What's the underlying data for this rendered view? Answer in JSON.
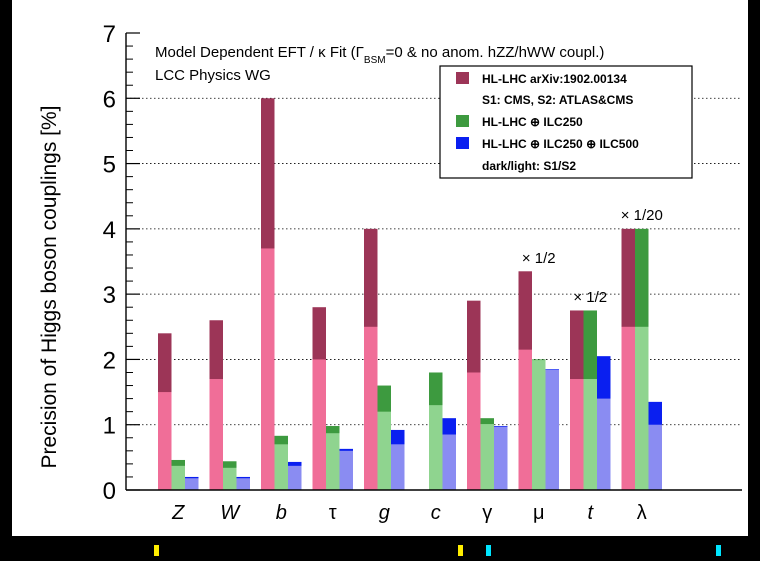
{
  "colors": {
    "background": "#000000",
    "panel": "#ffffff",
    "hl_dark": "#9c3557",
    "hl_light": "#f06e98",
    "ilc250_dark": "#3d9a3f",
    "ilc250_light": "#8fd48f",
    "ilc500_dark": "#0a1ff0",
    "ilc500_light": "#8a8cf2",
    "marker_yellow": "#ffee00",
    "marker_cyan": "#00e5ff"
  },
  "chart_data": {
    "type": "bar",
    "ylabel": "Precision of Higgs boson couplings [%]",
    "ylim": [
      0,
      7
    ],
    "yticks": [
      "0",
      "1",
      "2",
      "3",
      "4",
      "5",
      "6",
      "7"
    ],
    "grid": "horizontal dotted at 1–6",
    "categories": [
      "Z",
      "W",
      "b",
      "τ",
      "g",
      "c",
      "γ",
      "μ",
      "t",
      "λ"
    ],
    "title_lines": [
      "Model Dependent EFT / κ Fit (Γ",
      "BSM",
      "=0 & no anom. hZZ/hWW coupl.)",
      "LCC Physics WG"
    ],
    "legend_entries": [
      "HL-LHC arXiv:1902.00134",
      "S1: CMS, S2: ATLAS&CMS",
      "HL-LHC ⊕ ILC250",
      "HL-LHC ⊕ ILC250 ⊕ ILC500",
      "dark/light: S1/S2"
    ],
    "annotations": [
      {
        "text": "× 1/2",
        "category": "μ"
      },
      {
        "text": "× 1/2",
        "category": "t"
      },
      {
        "text": "× 1/20",
        "category": "λ"
      }
    ],
    "series": [
      {
        "name": "HL-LHC arXiv:1902.00134",
        "s1": [
          2.4,
          2.6,
          6.0,
          2.8,
          4.0,
          null,
          2.9,
          3.35,
          2.75,
          4.0
        ],
        "s2": [
          1.5,
          1.7,
          3.7,
          2.0,
          2.5,
          null,
          1.8,
          2.15,
          1.7,
          2.5
        ]
      },
      {
        "name": "HL-LHC ⊕ ILC250",
        "s1": [
          0.46,
          0.44,
          0.83,
          0.98,
          1.6,
          1.8,
          1.1,
          2.0,
          2.75,
          4.0
        ],
        "s2": [
          0.37,
          0.34,
          0.7,
          0.87,
          1.2,
          1.3,
          1.01,
          1.99,
          1.7,
          2.5
        ]
      },
      {
        "name": "HL-LHC ⊕ ILC250 ⊕ ILC500",
        "s1": [
          0.2,
          0.2,
          0.43,
          0.63,
          0.92,
          1.1,
          0.98,
          1.85,
          2.05,
          1.35
        ],
        "s2": [
          0.18,
          0.18,
          0.37,
          0.6,
          0.7,
          0.85,
          0.97,
          1.84,
          1.4,
          1.0
        ]
      }
    ]
  }
}
